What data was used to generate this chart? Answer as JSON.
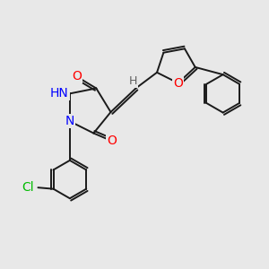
{
  "background_color": "#e8e8e8",
  "bond_color": "#1a1a1a",
  "atom_colors": {
    "O": "#ff0000",
    "N": "#0000ff",
    "Cl": "#00bb00",
    "C": "#1a1a1a",
    "H": "#606060"
  },
  "font_size_atoms": 10,
  "font_size_H": 9,
  "font_size_Cl": 10,
  "figsize": [
    3.0,
    3.0
  ],
  "dpi": 100
}
